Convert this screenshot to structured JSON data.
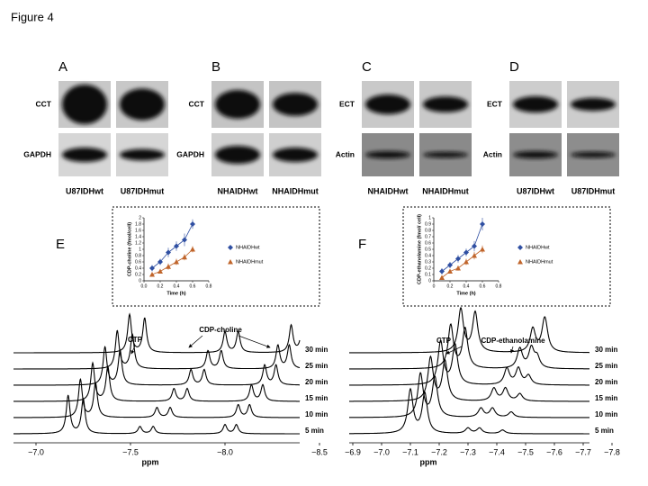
{
  "figure_title": "Figure 4",
  "blots": [
    {
      "letter": "A",
      "rows": [
        "CCT",
        "GAPDH"
      ],
      "lanes": [
        "U87IDHwt",
        "U87IDHmut"
      ]
    },
    {
      "letter": "B",
      "rows": [
        "CCT",
        "GAPDH"
      ],
      "lanes": [
        "NHAIDHwt",
        "NHAIDHmut"
      ]
    },
    {
      "letter": "C",
      "rows": [
        "ECT",
        "Actin"
      ],
      "lanes": [
        "NHAIDHwt",
        "NHAIDHmut"
      ]
    },
    {
      "letter": "D",
      "rows": [
        "ECT",
        "Actin"
      ],
      "lanes": [
        "U87IDHwt",
        "U87IDHmut"
      ]
    }
  ],
  "spectra": [
    {
      "letter": "E",
      "inset": {
        "type": "line",
        "ylabel": "CDP-choline (fmol/cell)",
        "xlabel": "Time (h)",
        "x": [
          0.1,
          0.2,
          0.3,
          0.4,
          0.5,
          0.6
        ],
        "xlim": [
          0,
          0.8
        ],
        "xticks": [
          {
            "value": 0,
            "label": "0.0"
          },
          {
            "value": 0.2,
            "label": "0.2"
          },
          {
            "value": 0.4,
            "label": "0.4"
          },
          {
            "value": 0.6,
            "label": "0.6"
          },
          {
            "value": 0.8,
            "label": "0.8"
          }
        ],
        "ylim": [
          0,
          2
        ],
        "yticks": [
          0,
          0.2,
          0.4,
          0.6,
          0.8,
          1,
          1.2,
          1.4,
          1.6,
          1.8,
          2
        ],
        "series": [
          {
            "name": "NHAIDHwt",
            "color": "#2f4fa2",
            "values": [
              0.4,
              0.6,
              0.9,
              1.1,
              1.3,
              1.8
            ],
            "errors": [
              0.1,
              0.1,
              0.15,
              0.15,
              0.2,
              0.15
            ]
          },
          {
            "name": "NHAIDHmut",
            "color": "#c0642a",
            "values": [
              0.2,
              0.3,
              0.45,
              0.6,
              0.75,
              1.0
            ],
            "errors": [
              0.05,
              0.05,
              0.1,
              0.1,
              0.1,
              0.1
            ]
          }
        ]
      },
      "annotations": [
        "CTP",
        "CDP-choline"
      ],
      "traces": [
        "30 min",
        "25 min",
        "20 min",
        "15 min",
        "10 min",
        "5 min"
      ],
      "xlabel": "ppm",
      "xlim": [
        -6.9,
        -8.5
      ],
      "xticks": [
        {
          "value": -7,
          "label": "−7.0"
        },
        {
          "value": -7.5,
          "label": "−7.5"
        },
        {
          "value": -8,
          "label": "−8.0"
        },
        {
          "value": -8.5,
          "label": "−8.5"
        }
      ]
    },
    {
      "letter": "F",
      "inset": {
        "type": "line",
        "ylabel": "CDP-ethanolamine (fmol/ cell)",
        "xlabel": "Time (h)",
        "x": [
          0.1,
          0.2,
          0.3,
          0.4,
          0.5,
          0.6
        ],
        "xlim": [
          0,
          0.8
        ],
        "xticks": [
          0,
          0.2,
          0.4,
          0.6,
          0.8
        ],
        "ylim": [
          0,
          1
        ],
        "yticks": [
          0,
          0.1,
          0.2,
          0.3,
          0.4,
          0.5,
          0.6,
          0.7,
          0.8,
          0.9,
          1
        ],
        "series": [
          {
            "name": "NHAIDHwt",
            "color": "#2f4fa2",
            "values": [
              0.15,
              0.25,
              0.35,
              0.45,
              0.55,
              0.9
            ],
            "errors": [
              0.05,
              0.05,
              0.06,
              0.06,
              0.08,
              0.1
            ]
          },
          {
            "name": "NHAIDHmut",
            "color": "#c0642a",
            "values": [
              0.05,
              0.15,
              0.2,
              0.3,
              0.4,
              0.5
            ],
            "errors": [
              0.03,
              0.03,
              0.04,
              0.05,
              0.06,
              0.06
            ]
          }
        ]
      },
      "annotations": [
        "CTP",
        "CDP-ethanolamine"
      ],
      "traces": [
        "30 min",
        "25 min",
        "20 min",
        "15 min",
        "10 min",
        "5 min"
      ],
      "xlabel": "ppm",
      "xlim": [
        -6.9,
        -7.8
      ],
      "xticks": [
        {
          "value": -6.9,
          "label": "−6.9"
        },
        {
          "value": -7,
          "label": "−7.0"
        },
        {
          "value": -7.1,
          "label": "−7.1"
        },
        {
          "value": -7.2,
          "label": "−7.2"
        },
        {
          "value": -7.3,
          "label": "−7.3"
        },
        {
          "value": -7.4,
          "label": "−7.4"
        },
        {
          "value": -7.5,
          "label": "−7.5"
        },
        {
          "value": -7.6,
          "label": "−7.6"
        },
        {
          "value": -7.7,
          "label": "−7.7"
        },
        {
          "value": -7.8,
          "label": "−7.8"
        }
      ]
    }
  ]
}
